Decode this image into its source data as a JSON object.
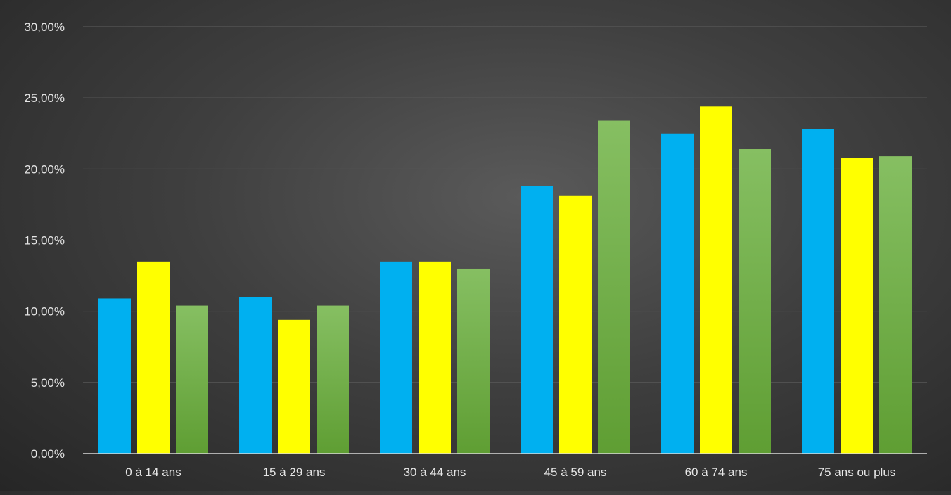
{
  "chart_data": {
    "type": "bar",
    "title": "",
    "xlabel": "",
    "ylabel": "",
    "categories": [
      "0 à 14 ans",
      "15 à 29 ans",
      "30 à 44 ans",
      "45 à 59 ans",
      "60 à 74 ans",
      "75 ans ou plus"
    ],
    "series": [
      {
        "values": [
          10.9,
          11.0,
          13.5,
          18.8,
          22.5,
          22.8
        ],
        "color": "#00b0f0"
      },
      {
        "values": [
          13.5,
          9.4,
          13.5,
          18.1,
          24.4,
          20.8
        ],
        "color": "#ffff00"
      },
      {
        "values": [
          10.4,
          10.4,
          13.0,
          23.4,
          21.4,
          20.9
        ],
        "color": "#70ad47"
      }
    ],
    "ylim": [
      0,
      30
    ],
    "yticks": [
      0,
      5,
      10,
      15,
      20,
      25,
      30
    ],
    "ytick_labels": [
      "0,00%",
      "5,00%",
      "10,00%",
      "15,00%",
      "20,00%",
      "25,00%",
      "30,00%"
    ],
    "grid": true,
    "legend": "none"
  }
}
